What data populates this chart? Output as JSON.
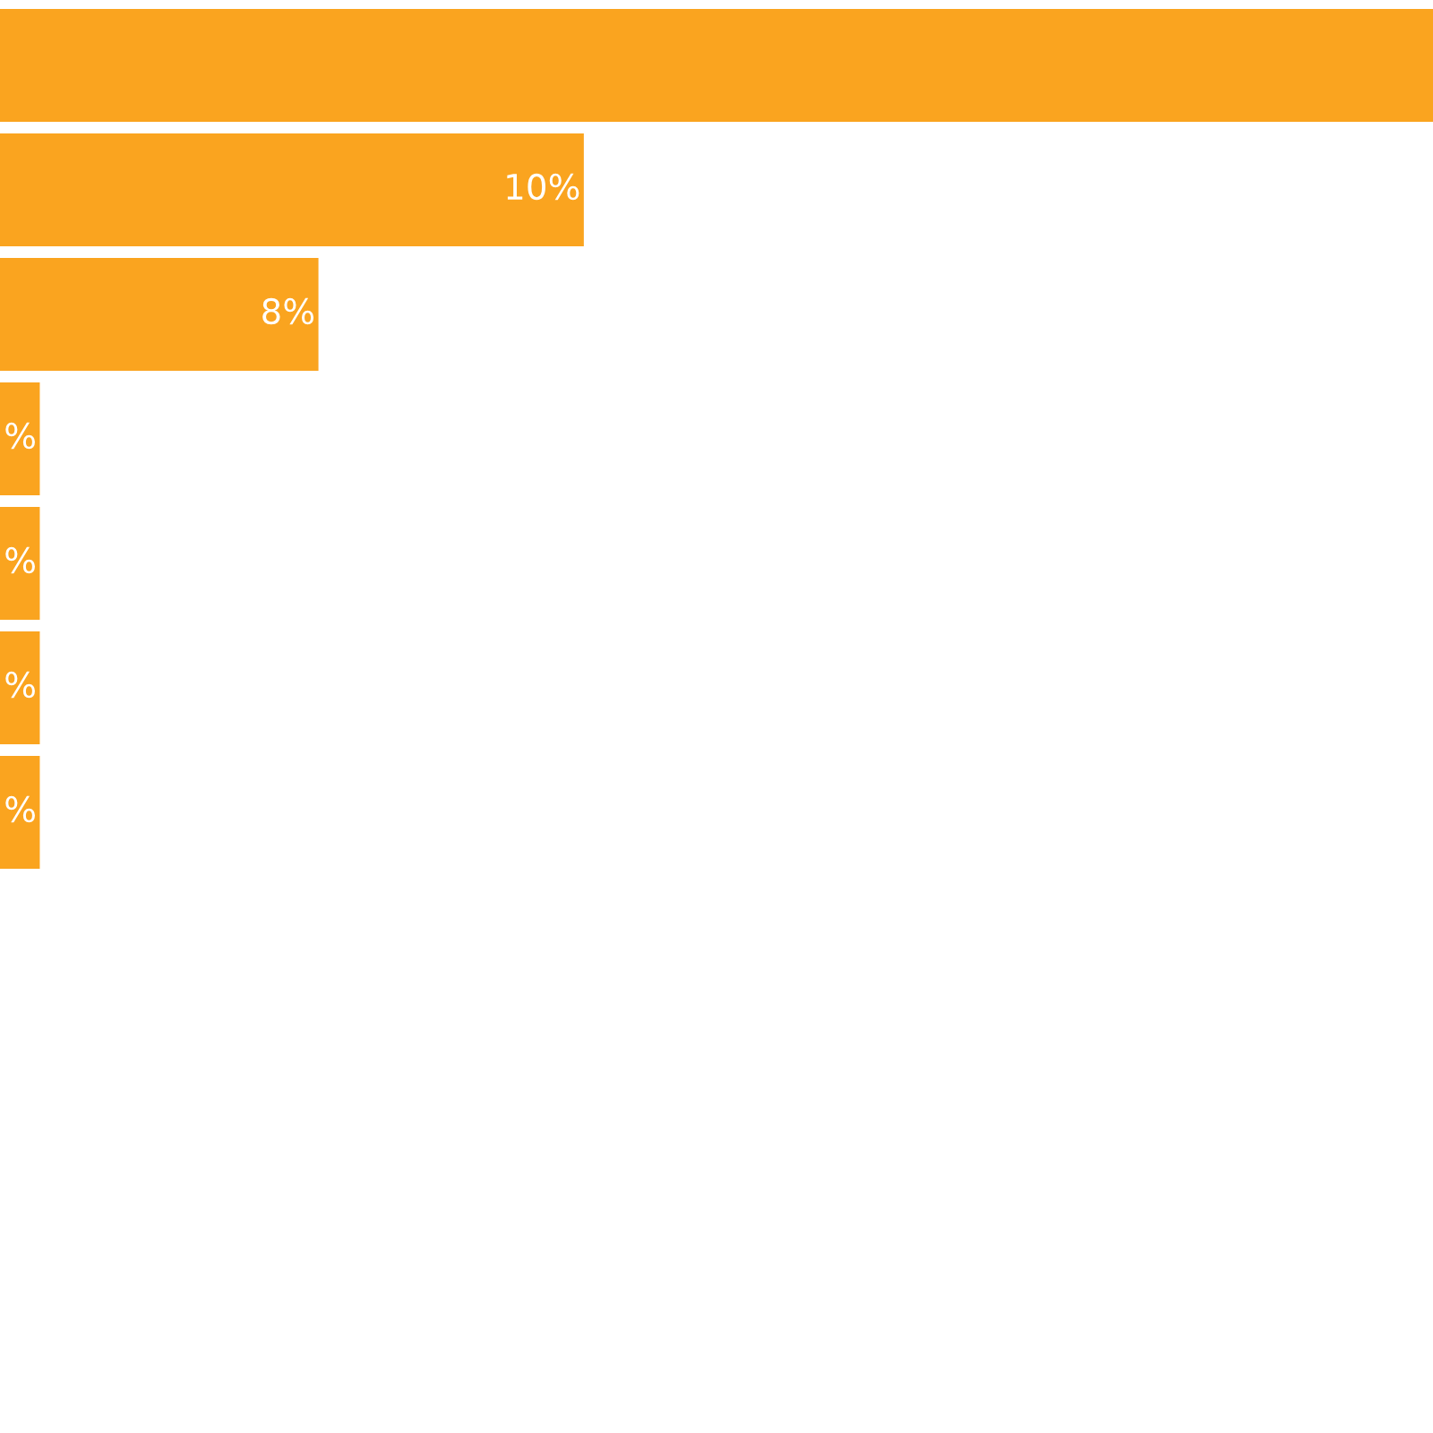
{
  "chart_data": {
    "type": "bar",
    "orientation": "horizontal",
    "categories": [
      null,
      null,
      null,
      null,
      null,
      null,
      null
    ],
    "values": [
      16.4,
      10,
      8,
      5.9,
      5.9,
      5.9,
      5.9
    ],
    "value_labels": [
      null,
      "10%",
      "8%",
      "%",
      "%",
      "%",
      "%"
    ],
    "color": "#faa41f",
    "xlim": [
      5.6,
      16.4
    ]
  }
}
